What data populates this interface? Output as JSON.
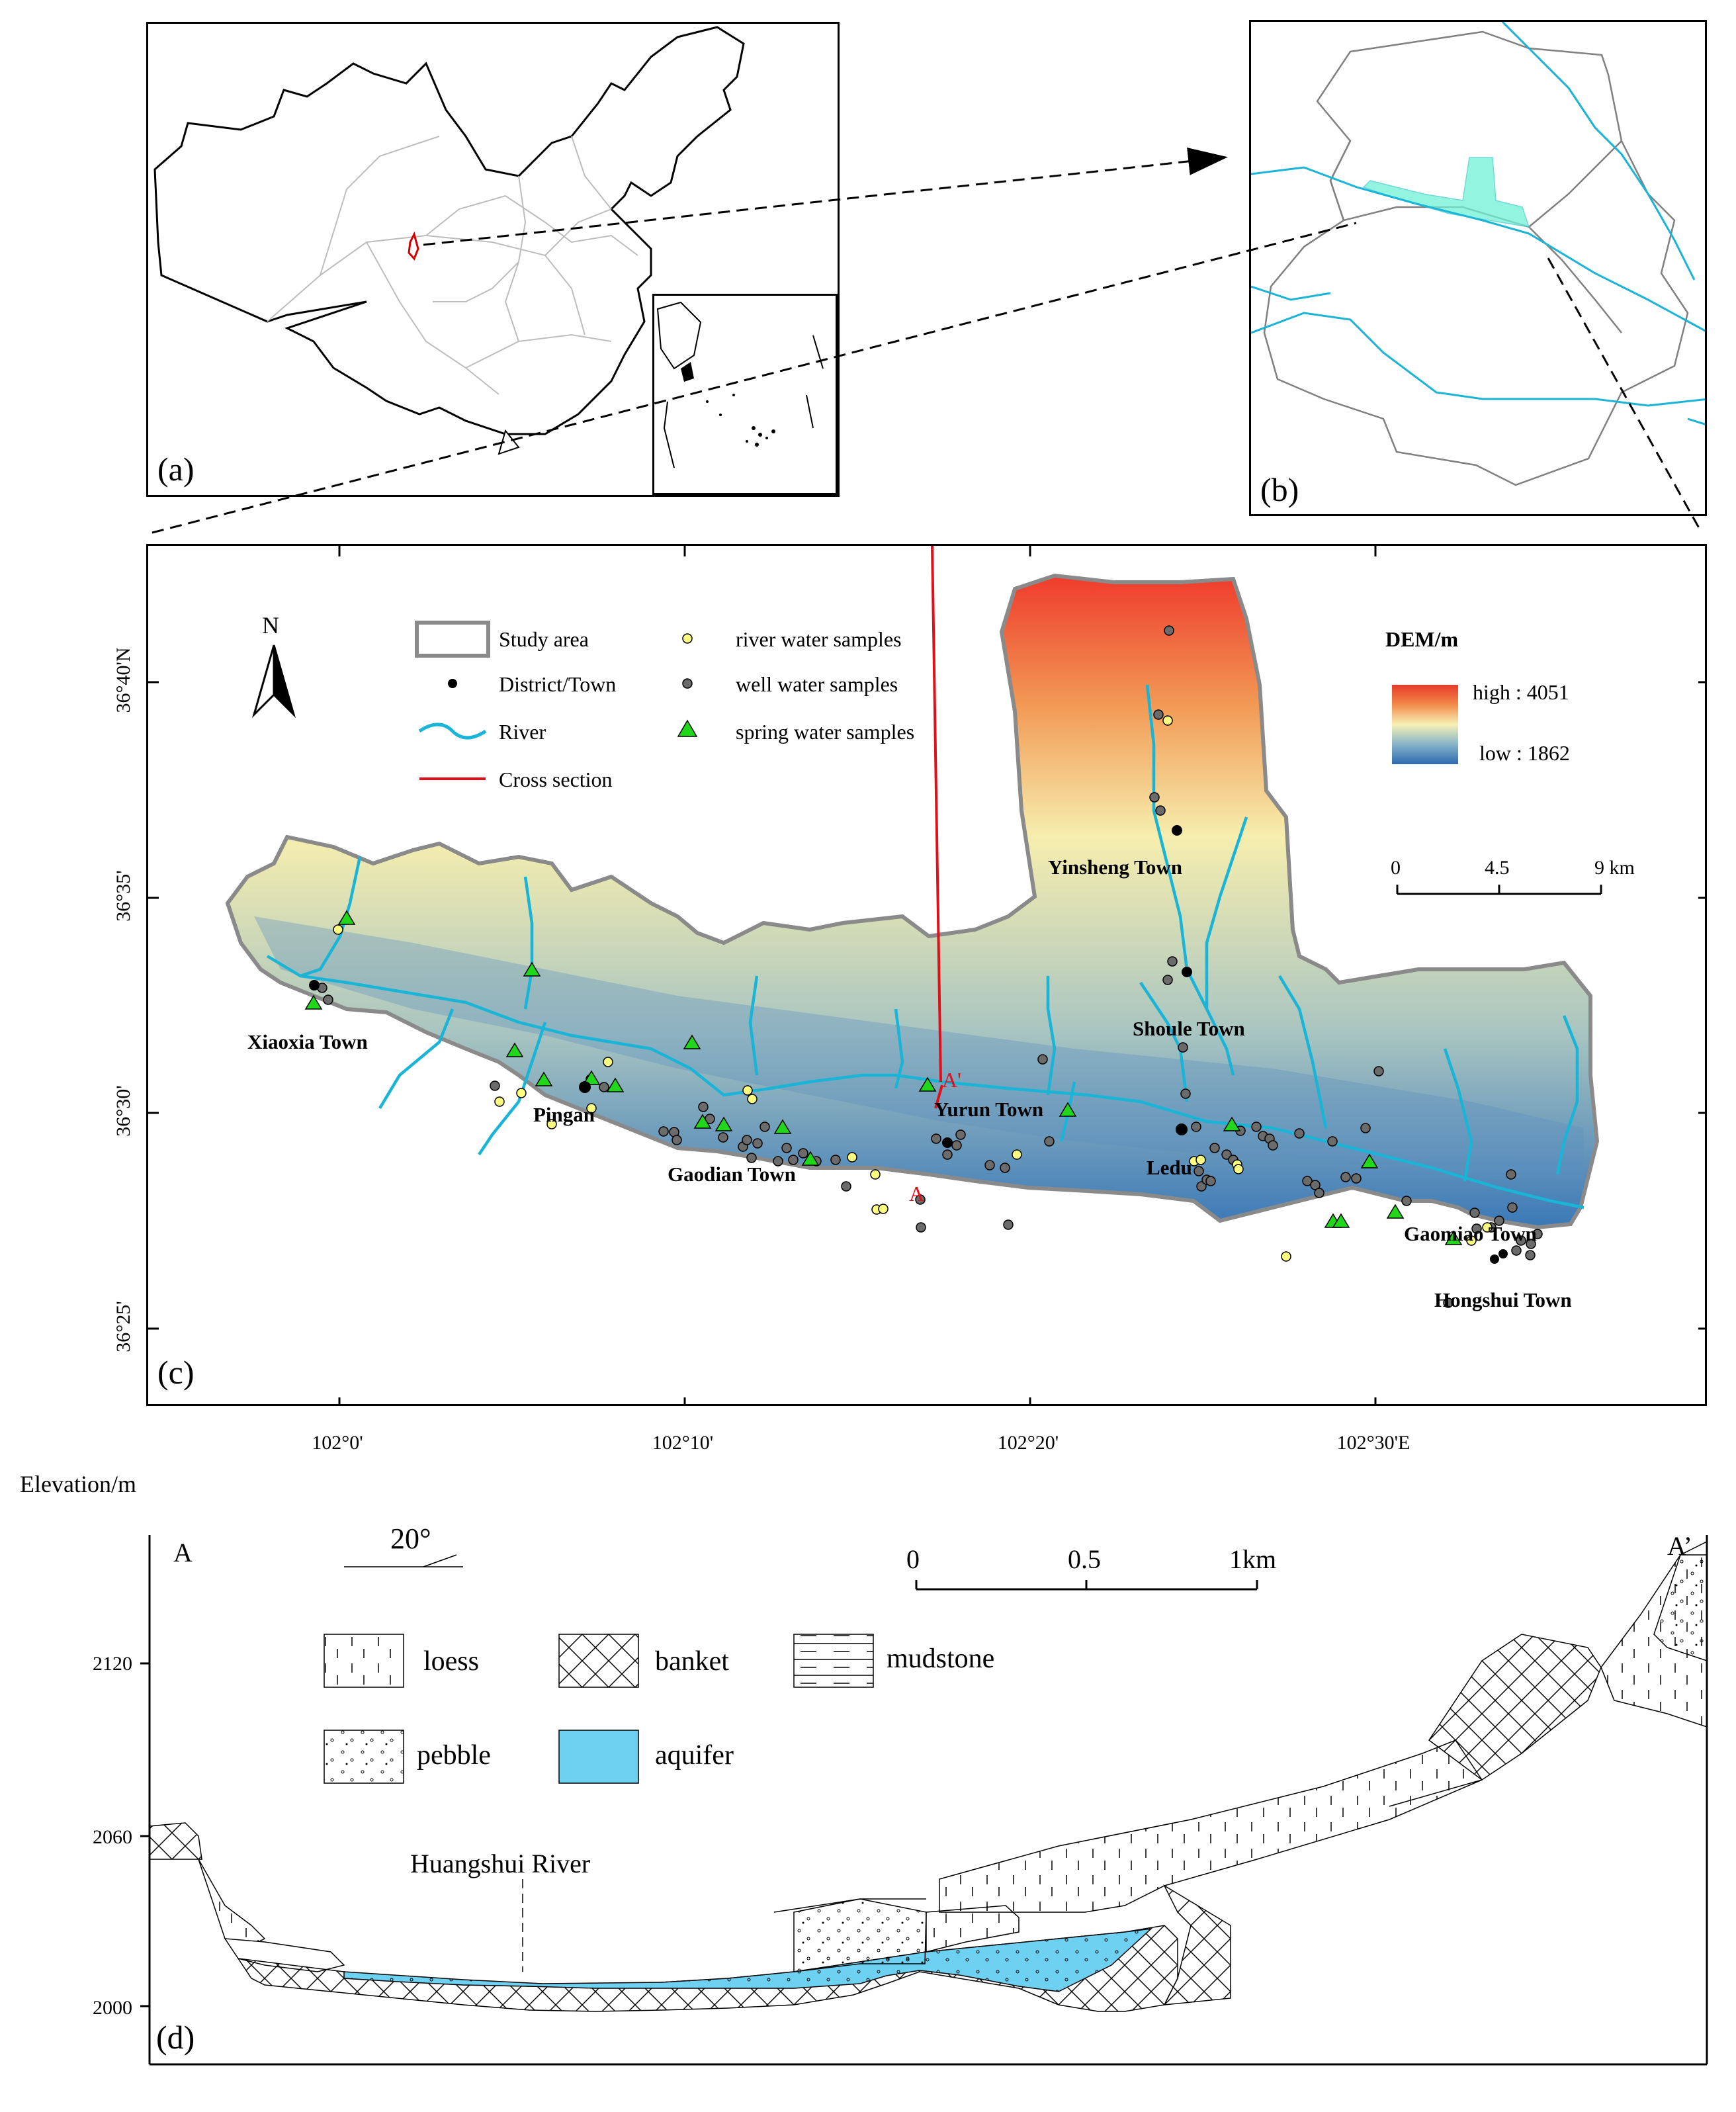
{
  "panels": {
    "a": "(a)",
    "b": "(b)",
    "c": "(c)",
    "d": "(d)"
  },
  "map_c": {
    "north": "N",
    "legend": {
      "study_area": "Study area",
      "district_town": "District/Town",
      "river": "River",
      "cross_section": "Cross section",
      "river_samples": "river water samples",
      "well_samples": "well water samples",
      "spring_samples": "spring water samples"
    },
    "dem": {
      "title": "DEM/m",
      "high": "high : 4051",
      "low": "low : 1862"
    },
    "scale": {
      "t0": "0",
      "t1": "4.5",
      "t2": "9 km"
    },
    "towns": {
      "xiaoxia": "Xiaoxia Town",
      "pingan": "Pingan",
      "gaodian": "Gaodian Town",
      "yurun": "Yurun Town",
      "ledu": "Ledu",
      "yinsheng": "Yinsheng Town",
      "shoule": "Shoule Town",
      "gaomiao": "Gaomiao Town",
      "hongshui": "Hongshui Town"
    },
    "section_labels": {
      "a": "A",
      "a_prime": "A'"
    },
    "lat_ticks": [
      "36°40'N",
      "36°35'",
      "36°30'",
      "36°25'"
    ],
    "lon_ticks": [
      "102°0'",
      "102°10'",
      "102°20'",
      "102°30'E"
    ],
    "colors": {
      "river": "#19b4d6",
      "spring": "#22d61c",
      "well": "#6b6b6b",
      "river_sample": "#ffff80",
      "section": "#e0101a"
    }
  },
  "section_d": {
    "ylabel": "Elevation/m",
    "y_ticks": [
      "2120",
      "2060",
      "2000"
    ],
    "a_label": "A",
    "a_prime_label": "A’",
    "dip": "20°",
    "scale": {
      "t0": "0",
      "t1": "0.5",
      "t2": "1km"
    },
    "river_label": "Huangshui River",
    "legend": {
      "loess": "loess",
      "banket": "banket",
      "mudstone": "mudstone",
      "pebble": "pebble",
      "aquifer": "aquifer"
    },
    "colors": {
      "aquifer": "#6fd1f2"
    }
  }
}
